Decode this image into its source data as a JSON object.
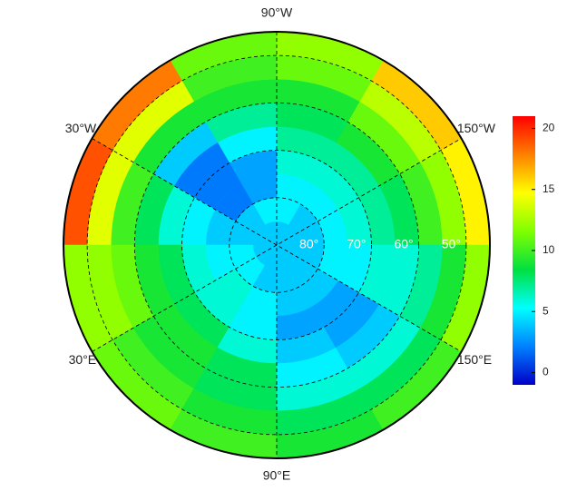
{
  "map": {
    "lon_labels": [
      {
        "lon": -90,
        "label": "90°W"
      },
      {
        "lon": -30,
        "label": "30°W"
      },
      {
        "lon": -150,
        "label": "150°W"
      },
      {
        "lon": 30,
        "label": "30°E"
      },
      {
        "lon": 150,
        "label": "150°E"
      },
      {
        "lon": 90,
        "label": "90°E"
      }
    ],
    "lat_circles": [
      {
        "lat": 80,
        "label": "80°"
      },
      {
        "lat": 70,
        "label": "70°"
      },
      {
        "lat": 60,
        "label": "60°"
      },
      {
        "lat": 50,
        "label": "50°"
      }
    ],
    "meridians": [
      -90,
      -30,
      30
    ],
    "lat_min": 45,
    "field": {
      "lat_edges": [
        90,
        85,
        80,
        75,
        70,
        65,
        60,
        55,
        50,
        45
      ],
      "lon_edges": [
        -180,
        -150,
        -120,
        -90,
        -60,
        -30,
        0,
        30,
        60,
        90,
        120,
        150,
        180
      ],
      "values": [
        [
          4,
          4,
          4,
          4,
          4,
          4,
          4,
          4,
          4,
          4,
          4,
          4
        ],
        [
          4,
          4,
          5,
          5,
          4,
          4,
          5,
          5,
          4,
          4,
          4,
          4
        ],
        [
          5,
          5,
          5,
          3,
          2,
          4,
          5,
          6,
          5,
          4,
          4,
          5
        ],
        [
          6,
          6,
          6,
          3,
          2,
          5,
          6,
          6,
          5,
          3,
          3,
          5
        ],
        [
          7,
          7,
          7,
          5,
          2,
          6,
          8,
          8,
          6,
          4,
          3,
          6
        ],
        [
          8,
          9,
          8,
          7,
          4,
          8,
          9,
          9,
          8,
          5,
          4,
          6
        ],
        [
          10,
          11,
          9,
          9,
          9,
          10,
          11,
          9,
          8,
          6,
          6,
          7
        ],
        [
          12,
          13,
          11,
          10,
          14,
          14,
          12,
          10,
          9,
          8,
          8,
          9
        ],
        [
          15,
          16,
          12,
          11,
          18,
          19,
          12,
          11,
          10,
          9,
          10,
          12
        ]
      ]
    },
    "colorbar": {
      "lim": [
        -1,
        21
      ],
      "ticks": [
        0,
        5,
        10,
        15,
        20
      ],
      "colors": [
        "#0000c8",
        "#0080ff",
        "#00ffff",
        "#00e040",
        "#80ff00",
        "#ffff00",
        "#ff8000",
        "#ff0000"
      ]
    }
  }
}
